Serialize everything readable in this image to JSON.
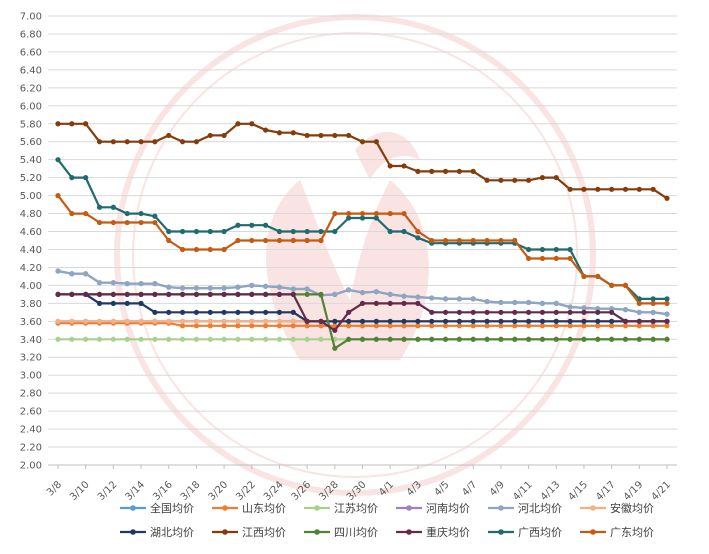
{
  "chart_data": {
    "type": "line",
    "ylim": [
      2.0,
      7.0
    ],
    "y_ticks": [
      "2.00",
      "2.20",
      "2.40",
      "2.60",
      "2.80",
      "3.00",
      "3.20",
      "3.40",
      "3.60",
      "3.80",
      "4.00",
      "4.20",
      "4.40",
      "4.60",
      "4.80",
      "5.00",
      "5.20",
      "5.40",
      "5.60",
      "5.80",
      "6.00",
      "6.20",
      "6.40",
      "6.60",
      "6.80",
      "7.00"
    ],
    "x": [
      "3/8",
      "3/9",
      "3/10",
      "3/11",
      "3/12",
      "3/13",
      "3/14",
      "3/15",
      "3/16",
      "3/17",
      "3/18",
      "3/19",
      "3/20",
      "3/21",
      "3/22",
      "3/23",
      "3/24",
      "3/25",
      "3/26",
      "3/27",
      "3/28",
      "3/29",
      "3/30",
      "3/31",
      "4/1",
      "4/2",
      "4/3",
      "4/4",
      "4/5",
      "4/6",
      "4/7",
      "4/8",
      "4/9",
      "4/10",
      "4/11",
      "4/12",
      "4/13",
      "4/14",
      "4/15",
      "4/16",
      "4/17",
      "4/18",
      "4/19",
      "4/20",
      "4/21"
    ],
    "x_tick_labels": [
      "3/8",
      "3/10",
      "3/12",
      "3/14",
      "3/16",
      "3/18",
      "3/20",
      "3/22",
      "3/24",
      "3/26",
      "3/28",
      "3/30",
      "4/1",
      "4/3",
      "4/5",
      "4/7",
      "4/9",
      "4/11",
      "4/13",
      "4/15",
      "4/17",
      "4/19",
      "4/21"
    ],
    "grid": "horizontal",
    "legend_position": "bottom",
    "series": [
      {
        "name": "全国均价",
        "color": "#5b9bd5",
        "values": [
          4.16,
          4.13,
          4.13,
          4.03,
          4.03,
          4.02,
          4.02,
          4.02,
          3.98,
          3.97,
          3.97,
          3.97,
          3.97,
          3.98,
          4.0,
          3.99,
          3.98,
          3.96,
          3.96,
          3.89,
          3.9,
          3.95,
          3.92,
          3.93,
          3.9,
          3.88,
          3.87,
          3.86,
          3.85,
          3.85,
          3.85,
          3.82,
          3.81,
          3.81,
          3.81,
          3.8,
          3.8,
          3.76,
          3.75,
          3.74,
          3.74,
          3.73,
          3.7,
          3.7,
          3.68
        ]
      },
      {
        "name": "山东均价",
        "color": "#ed7d31",
        "values": [
          3.58,
          3.58,
          3.58,
          3.58,
          3.58,
          3.58,
          3.58,
          3.58,
          3.58,
          3.55,
          3.55,
          3.55,
          3.55,
          3.55,
          3.55,
          3.55,
          3.55,
          3.55,
          3.55,
          3.55,
          3.55,
          3.55,
          3.55,
          3.55,
          3.55,
          3.55,
          3.55,
          3.55,
          3.55,
          3.55,
          3.55,
          3.55,
          3.55,
          3.55,
          3.55,
          3.55,
          3.55,
          3.55,
          3.55,
          3.55,
          3.55,
          3.55,
          3.55,
          3.55,
          3.55
        ]
      },
      {
        "name": "江苏均价",
        "color": "#a9d18e",
        "values": [
          3.4,
          3.4,
          3.4,
          3.4,
          3.4,
          3.4,
          3.4,
          3.4,
          3.4,
          3.4,
          3.4,
          3.4,
          3.4,
          3.4,
          3.4,
          3.4,
          3.4,
          3.4,
          3.4,
          3.4,
          3.4,
          3.4,
          3.4,
          3.4,
          3.4,
          3.4,
          3.4,
          3.4,
          3.4,
          3.4,
          3.4,
          3.4,
          3.4,
          3.4,
          3.4,
          3.4,
          3.4,
          3.4,
          3.4,
          3.4,
          3.4,
          3.4,
          3.4,
          3.4,
          3.4
        ]
      },
      {
        "name": "河南均价",
        "color": "#9e80c9",
        "values": [
          3.6,
          3.6,
          3.6,
          3.6,
          3.6,
          3.6,
          3.6,
          3.6,
          3.6,
          3.6,
          3.6,
          3.6,
          3.6,
          3.6,
          3.6,
          3.6,
          3.6,
          3.6,
          3.6,
          3.6,
          3.6,
          3.6,
          3.6,
          3.6,
          3.6,
          3.6,
          3.6,
          3.6,
          3.6,
          3.6,
          3.6,
          3.6,
          3.6,
          3.6,
          3.6,
          3.6,
          3.6,
          3.6,
          3.6,
          3.6,
          3.6,
          3.6,
          3.6,
          3.6,
          3.6
        ]
      },
      {
        "name": "河北均价",
        "color": "#8fa5c2",
        "values": [
          4.16,
          4.13,
          4.13,
          4.03,
          4.03,
          4.02,
          4.02,
          4.02,
          3.98,
          3.97,
          3.97,
          3.97,
          3.97,
          3.98,
          4.0,
          3.99,
          3.98,
          3.96,
          3.96,
          3.89,
          3.9,
          3.95,
          3.92,
          3.93,
          3.9,
          3.88,
          3.87,
          3.86,
          3.85,
          3.85,
          3.85,
          3.82,
          3.81,
          3.81,
          3.81,
          3.8,
          3.8,
          3.76,
          3.75,
          3.74,
          3.74,
          3.73,
          3.7,
          3.7,
          3.68
        ]
      },
      {
        "name": "安徽均价",
        "color": "#f4b183",
        "values": [
          3.6,
          3.6,
          3.6,
          3.6,
          3.6,
          3.6,
          3.6,
          3.6,
          3.6,
          3.6,
          3.6,
          3.6,
          3.6,
          3.6,
          3.6,
          3.6,
          3.6,
          3.6,
          3.6,
          3.6,
          3.6,
          3.6,
          3.6,
          3.6,
          3.6,
          3.6,
          3.6,
          3.6,
          3.6,
          3.6,
          3.6,
          3.6,
          3.6,
          3.6,
          3.6,
          3.6,
          3.6,
          3.6,
          3.6,
          3.6,
          3.6,
          3.6,
          3.6,
          3.6,
          3.6
        ]
      },
      {
        "name": "湖北均价",
        "color": "#203864",
        "values": [
          3.9,
          3.9,
          3.9,
          3.8,
          3.8,
          3.8,
          3.8,
          3.7,
          3.7,
          3.7,
          3.7,
          3.7,
          3.7,
          3.7,
          3.7,
          3.7,
          3.7,
          3.7,
          3.6,
          3.6,
          3.6,
          3.6,
          3.6,
          3.6,
          3.6,
          3.6,
          3.6,
          3.6,
          3.6,
          3.6,
          3.6,
          3.6,
          3.6,
          3.6,
          3.6,
          3.6,
          3.6,
          3.6,
          3.6,
          3.6,
          3.6,
          3.6,
          3.6,
          3.6,
          3.6
        ]
      },
      {
        "name": "江西均价",
        "color": "#843c0c",
        "values": [
          5.8,
          5.8,
          5.8,
          5.6,
          5.6,
          5.6,
          5.6,
          5.6,
          5.67,
          5.6,
          5.6,
          5.67,
          5.67,
          5.8,
          5.8,
          5.73,
          5.7,
          5.7,
          5.67,
          5.67,
          5.67,
          5.67,
          5.6,
          5.6,
          5.33,
          5.33,
          5.27,
          5.27,
          5.27,
          5.27,
          5.27,
          5.17,
          5.17,
          5.17,
          5.17,
          5.2,
          5.2,
          5.07,
          5.07,
          5.07,
          5.07,
          5.07,
          5.07,
          5.07,
          4.97
        ]
      },
      {
        "name": "四川均价",
        "color": "#548235",
        "values": [
          3.9,
          3.9,
          3.9,
          3.9,
          3.9,
          3.9,
          3.9,
          3.9,
          3.9,
          3.9,
          3.9,
          3.9,
          3.9,
          3.9,
          3.9,
          3.9,
          3.9,
          3.9,
          3.9,
          3.9,
          3.3,
          3.4,
          3.4,
          3.4,
          3.4,
          3.4,
          3.4,
          3.4,
          3.4,
          3.4,
          3.4,
          3.4,
          3.4,
          3.4,
          3.4,
          3.4,
          3.4,
          3.4,
          3.4,
          3.4,
          3.4,
          3.4,
          3.4,
          3.4,
          3.4
        ]
      },
      {
        "name": "重庆均价",
        "color": "#632a4a",
        "values": [
          3.9,
          3.9,
          3.9,
          3.9,
          3.9,
          3.9,
          3.9,
          3.9,
          3.9,
          3.9,
          3.9,
          3.9,
          3.9,
          3.9,
          3.9,
          3.9,
          3.9,
          3.9,
          3.6,
          3.6,
          3.5,
          3.7,
          3.8,
          3.8,
          3.8,
          3.8,
          3.8,
          3.7,
          3.7,
          3.7,
          3.7,
          3.7,
          3.7,
          3.7,
          3.7,
          3.7,
          3.7,
          3.7,
          3.7,
          3.7,
          3.7,
          3.6,
          3.6,
          3.6,
          3.6
        ]
      },
      {
        "name": "广西均价",
        "color": "#1f6b6f",
        "values": [
          5.4,
          5.2,
          5.2,
          4.87,
          4.87,
          4.8,
          4.8,
          4.77,
          4.6,
          4.6,
          4.6,
          4.6,
          4.6,
          4.67,
          4.67,
          4.67,
          4.6,
          4.6,
          4.6,
          4.6,
          4.6,
          4.75,
          4.75,
          4.75,
          4.6,
          4.6,
          4.53,
          4.47,
          4.47,
          4.47,
          4.47,
          4.47,
          4.47,
          4.47,
          4.4,
          4.4,
          4.4,
          4.4,
          4.1,
          4.1,
          4.0,
          4.0,
          3.85,
          3.85,
          3.85
        ]
      },
      {
        "name": "广东均价",
        "color": "#c55a11",
        "values": [
          5.0,
          4.8,
          4.8,
          4.7,
          4.7,
          4.7,
          4.7,
          4.7,
          4.5,
          4.4,
          4.4,
          4.4,
          4.4,
          4.5,
          4.5,
          4.5,
          4.5,
          4.5,
          4.5,
          4.5,
          4.8,
          4.8,
          4.8,
          4.8,
          4.8,
          4.8,
          4.6,
          4.5,
          4.5,
          4.5,
          4.5,
          4.5,
          4.5,
          4.5,
          4.3,
          4.3,
          4.3,
          4.3,
          4.1,
          4.1,
          4.0,
          4.0,
          3.8,
          3.8,
          3.8
        ]
      }
    ]
  }
}
